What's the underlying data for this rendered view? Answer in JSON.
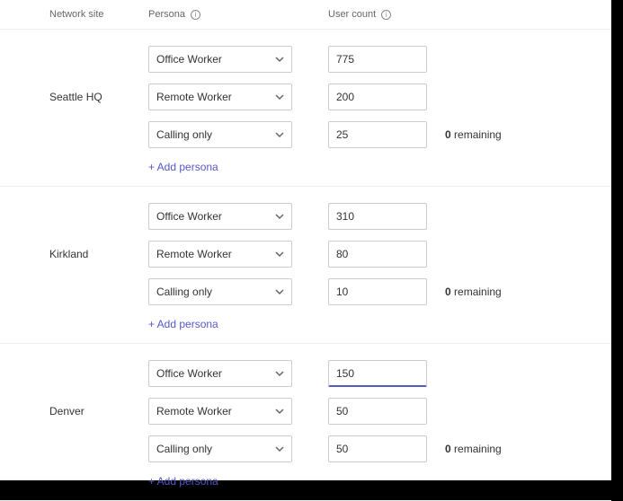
{
  "headers": {
    "network_site": "Network site",
    "persona": "Persona",
    "user_count": "User count"
  },
  "add_persona_label": "+ Add persona",
  "remaining_suffix": "remaining",
  "colors": {
    "accent": "#5558c7",
    "border": "#cccccc",
    "divider": "#eeeeee",
    "text": "#333333",
    "muted": "#666666",
    "background": "#ffffff"
  },
  "sites": [
    {
      "name": "Seattle HQ",
      "remaining": "0",
      "rows": [
        {
          "persona": "Office Worker",
          "count": "775",
          "focused": false
        },
        {
          "persona": "Remote Worker",
          "count": "200",
          "focused": false
        },
        {
          "persona": "Calling only",
          "count": "25",
          "focused": false
        }
      ]
    },
    {
      "name": "Kirkland",
      "remaining": "0",
      "rows": [
        {
          "persona": "Office Worker",
          "count": "310",
          "focused": false
        },
        {
          "persona": "Remote Worker",
          "count": "80",
          "focused": false
        },
        {
          "persona": "Calling only",
          "count": "10",
          "focused": false
        }
      ]
    },
    {
      "name": "Denver",
      "remaining": "0",
      "rows": [
        {
          "persona": "Office Worker",
          "count": "150",
          "focused": true
        },
        {
          "persona": "Remote Worker",
          "count": "50",
          "focused": false
        },
        {
          "persona": "Calling only",
          "count": "50",
          "focused": false
        }
      ]
    }
  ]
}
